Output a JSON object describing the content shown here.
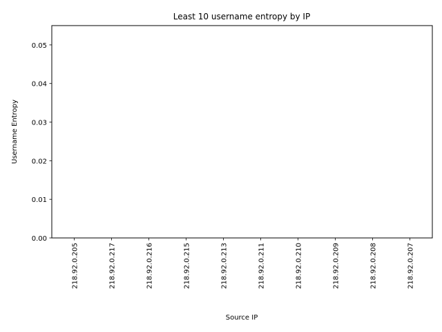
{
  "chart_data": {
    "type": "bar",
    "title": "Least 10 username entropy by IP",
    "xlabel": "Source IP",
    "ylabel": "Username Entropy",
    "categories": [
      "218.92.0.205",
      "218.92.0.217",
      "218.92.0.216",
      "218.92.0.215",
      "218.92.0.213",
      "218.92.0.211",
      "218.92.0.210",
      "218.92.0.209",
      "218.92.0.208",
      "218.92.0.207"
    ],
    "values": [
      0,
      0,
      0,
      0,
      0,
      0,
      0,
      0,
      0,
      0
    ],
    "ylim": [
      0,
      0.055
    ],
    "yticks": [
      0.0,
      0.01,
      0.02,
      0.03,
      0.04,
      0.05
    ],
    "ytick_labels": [
      "0.00",
      "0.01",
      "0.02",
      "0.03",
      "0.04",
      "0.05"
    ],
    "grid": false,
    "bar_color": "#1f77b4"
  }
}
